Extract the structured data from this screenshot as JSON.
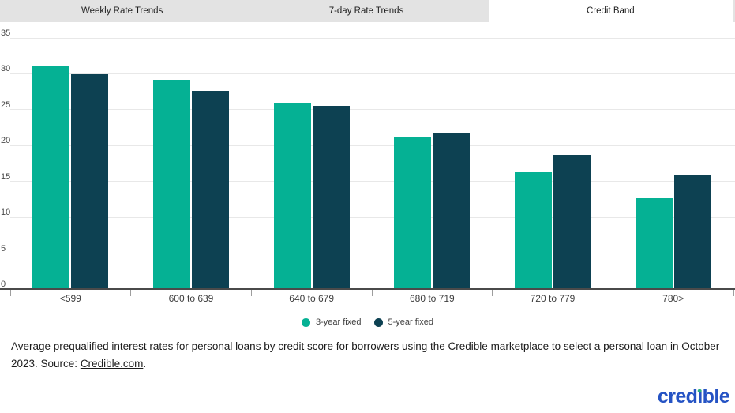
{
  "tabs": [
    {
      "label": "Weekly Rate Trends",
      "active": false
    },
    {
      "label": "7-day Rate Trends",
      "active": false
    },
    {
      "label": "Credit Band",
      "active": true
    }
  ],
  "chart_data": {
    "type": "bar",
    "categories": [
      "<599",
      "600 to 639",
      "640 to 679",
      "680 to 719",
      "720 to 779",
      "780>"
    ],
    "series": [
      {
        "name": "3-year fixed",
        "color": "#05b194",
        "values": [
          31.2,
          29.2,
          26.0,
          21.1,
          16.3,
          12.7
        ]
      },
      {
        "name": "5-year fixed",
        "color": "#0d4152",
        "values": [
          29.9,
          27.6,
          25.5,
          21.7,
          18.7,
          15.8
        ]
      }
    ],
    "ylim": [
      0,
      35
    ],
    "yticks": [
      0,
      5,
      10,
      15,
      20,
      25,
      30,
      35
    ],
    "grid": true,
    "legend_position": "bottom",
    "title": "",
    "xlabel": "",
    "ylabel": ""
  },
  "caption": {
    "text": "Average prequalified interest rates for personal loans by credit score for borrowers using the Credible marketplace to select a personal loan in October 2023. Source: ",
    "link_text": "Credible.com",
    "suffix": "."
  },
  "logo": {
    "text": "credible"
  },
  "colors": {
    "series_3yr": "#05b194",
    "series_5yr": "#0d4152",
    "tabbar_bg": "#e3e3e3",
    "logo_blue": "#2553c4",
    "logo_dot_green": "#2aaf7e"
  }
}
